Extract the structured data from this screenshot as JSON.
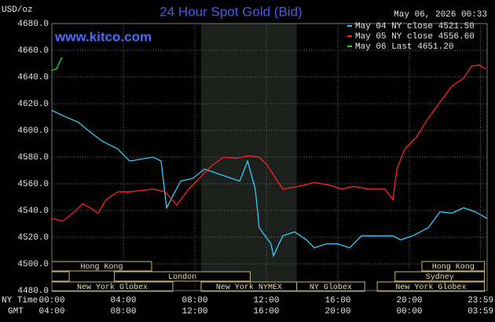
{
  "chart_data": {
    "type": "line",
    "title": "24 Hour Spot Gold (Bid)",
    "y_label": "USD/oz",
    "timestamp": "May 06, 2026 00:33",
    "watermark": "www.kitco.com",
    "x_row_labels": [
      "NY Time",
      "GMT"
    ],
    "xlim": [
      0,
      24.35
    ],
    "ylim": [
      4480,
      4680
    ],
    "grid": true,
    "legend": "top-right",
    "xticks": [
      {
        "value": 0,
        "label": "00:00"
      },
      {
        "value": 4,
        "label": "04:00"
      },
      {
        "value": 8,
        "label": "08:00"
      },
      {
        "value": 12,
        "label": "12:00"
      },
      {
        "value": 16,
        "label": "16:00"
      },
      {
        "value": 20,
        "label": "20:00"
      },
      {
        "value": 23.98,
        "label": "23:59"
      }
    ],
    "gmt_labels": [
      "04:00",
      "08:00",
      "12:00",
      "16:00",
      "20:00",
      "00:00",
      "03:59"
    ],
    "yticks": [
      {
        "value": 4480,
        "label": "4480.0"
      },
      {
        "value": 4500,
        "label": "4500.0"
      },
      {
        "value": 4520,
        "label": "4520.0"
      },
      {
        "value": 4540,
        "label": "4540.0"
      },
      {
        "value": 4560,
        "label": "4560.0"
      },
      {
        "value": 4580,
        "label": "4580.0"
      },
      {
        "value": 4600,
        "label": "4600.0"
      },
      {
        "value": 4620,
        "label": "4620.0"
      },
      {
        "value": 4640,
        "label": "4640.0"
      },
      {
        "value": 4660,
        "label": "4660.0"
      },
      {
        "value": 4680,
        "label": "4680.0"
      }
    ],
    "shaded": [
      8.35,
      13.7
    ],
    "sessions": [
      {
        "label": "Hong Kong",
        "start": 0,
        "end": 5.58,
        "row": 0
      },
      {
        "label": "Hong Kong",
        "start": 20.7,
        "end": 24.2,
        "row": 0
      },
      {
        "start": 0,
        "end": 0.97,
        "row": 1
      },
      {
        "label": "London",
        "start": 3.5,
        "end": 11.1,
        "row": 1
      },
      {
        "label": "Sydney",
        "start": 19.2,
        "end": 24.2,
        "row": 1
      },
      {
        "label": "New York Globex",
        "start": 0,
        "end": 6.77,
        "row": 2
      },
      {
        "label": "New York NYMEX",
        "start": 8.35,
        "end": 13.7,
        "row": 2
      },
      {
        "label": "NY Globex",
        "start": 13.7,
        "end": 17.5,
        "row": 2
      },
      {
        "label": "New York Globex",
        "start": 18.2,
        "end": 24.2,
        "row": 2
      }
    ],
    "series": [
      {
        "name": "May 04 NY close 4521.50",
        "color": "#33ccff",
        "x": [
          0,
          0.62,
          1.49,
          1.93,
          2.81,
          3.69,
          4.35,
          5.67,
          6.11,
          6.42,
          6.77,
          7.21,
          7.87,
          8.53,
          9.19,
          9.85,
          10.51,
          10.95,
          11.38,
          11.6,
          12.26,
          12.4,
          12.92,
          13.58,
          14.24,
          14.68,
          15.34,
          16,
          16.66,
          17.32,
          18.2,
          19.08,
          19.52,
          20.18,
          21.05,
          21.71,
          22.37,
          23.03,
          23.69,
          24.35
        ],
        "values": [
          4615,
          4611,
          4606,
          4601,
          4592,
          4586,
          4577,
          4580,
          4577,
          4542,
          4551,
          4562,
          4564,
          4571,
          4568,
          4565,
          4562,
          4577,
          4556,
          4527,
          4515,
          4506,
          4521,
          4524,
          4518,
          4512,
          4515,
          4515,
          4512,
          4521,
          4521,
          4521,
          4518,
          4521,
          4527,
          4539,
          4538,
          4542,
          4539,
          4534
        ]
      },
      {
        "name": "May 05 NY close 4556.60",
        "color": "#ff2222",
        "x": [
          0,
          0.62,
          1.27,
          1.71,
          2.15,
          2.59,
          3.03,
          3.69,
          4.35,
          5.01,
          5.67,
          6.33,
          6.99,
          7.65,
          8.31,
          8.97,
          9.63,
          10.29,
          10.95,
          11.6,
          12.04,
          12.48,
          12.92,
          13.8,
          14.68,
          15.56,
          16.22,
          16.88,
          17.76,
          18.64,
          19.08,
          19.3,
          19.74,
          20.4,
          21.05,
          21.71,
          22.37,
          23.03,
          23.47,
          23.91,
          24.26
        ],
        "values": [
          4534,
          4532,
          4539,
          4545,
          4542,
          4538,
          4548,
          4554,
          4554,
          4555,
          4556,
          4554,
          4544,
          4556,
          4565,
          4574,
          4580,
          4579,
          4581,
          4580,
          4574,
          4565,
          4556,
          4558,
          4561,
          4559,
          4556,
          4558,
          4556,
          4556,
          4548,
          4571,
          4586,
          4595,
          4609,
          4621,
          4633,
          4639,
          4648,
          4649,
          4646
        ]
      },
      {
        "name": "May 06 Last 4651.20",
        "color": "#22dd22",
        "x": [
          0,
          0.26,
          0.53,
          0.62
        ],
        "values": [
          4645,
          4646,
          4654,
          4654
        ]
      }
    ]
  }
}
